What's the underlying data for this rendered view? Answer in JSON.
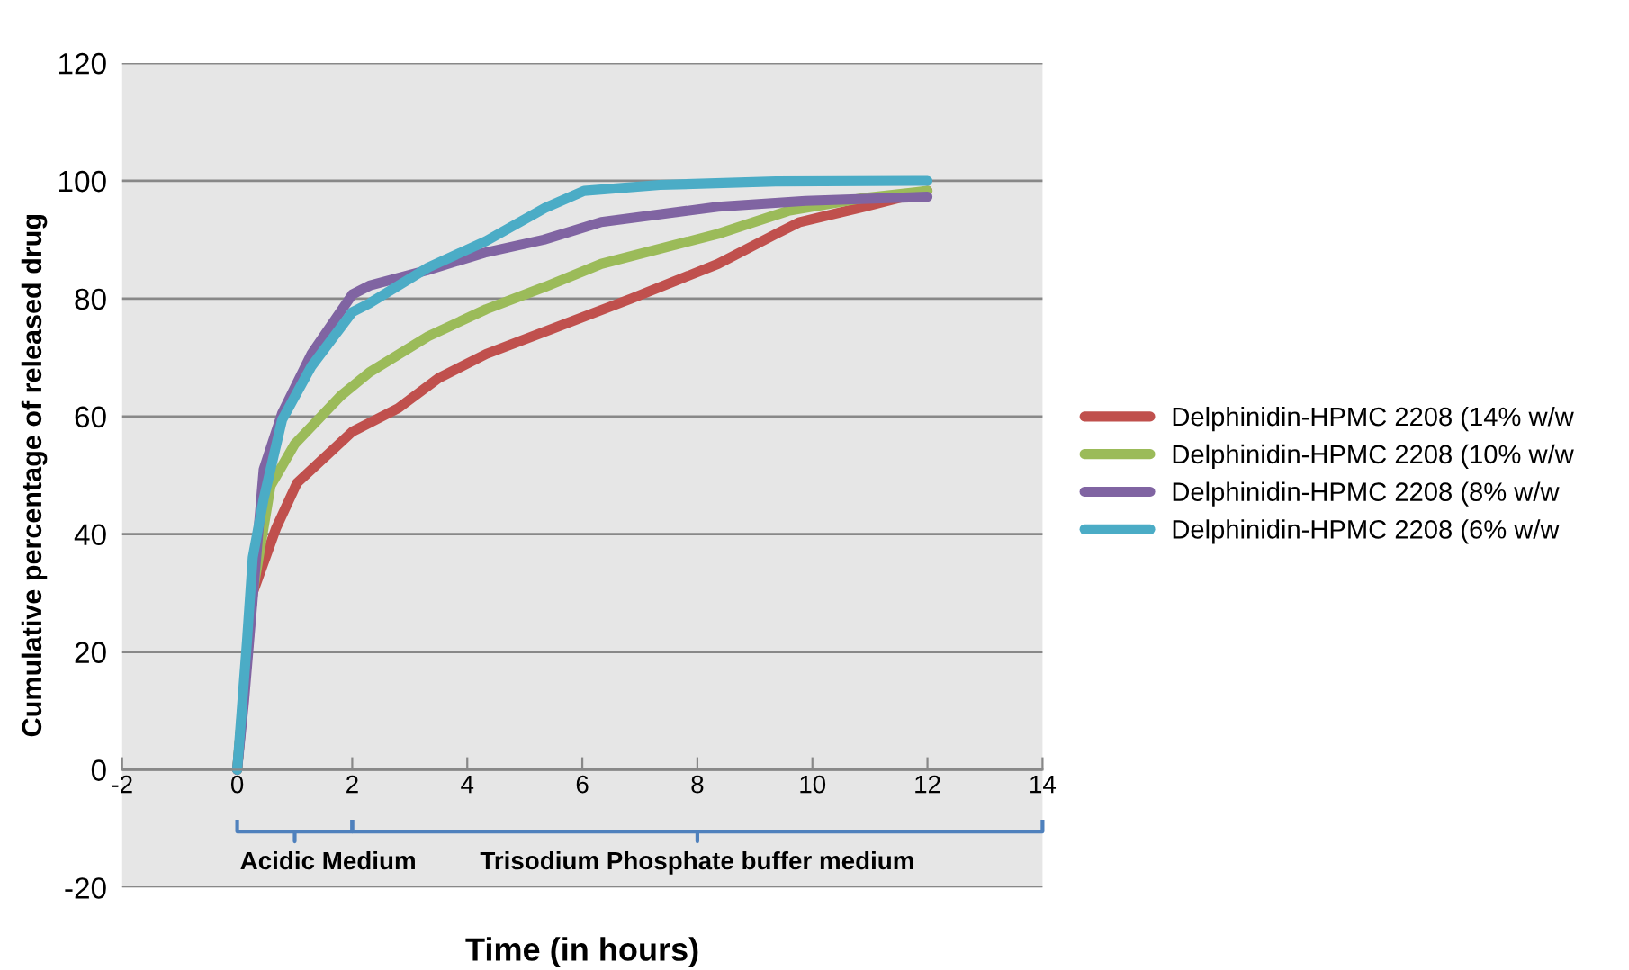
{
  "chart_data": {
    "type": "line",
    "xlabel": "Time (in hours)",
    "ylabel": "Cumulative percentage of released drug",
    "xlim": [
      -2,
      14
    ],
    "xticks": [
      -2,
      0,
      2,
      4,
      6,
      8,
      10,
      12,
      14
    ],
    "ylim": [
      -20,
      120
    ],
    "yticks": [
      -20,
      0,
      20,
      40,
      60,
      80,
      100,
      120
    ],
    "grid": "y",
    "legend": "right",
    "marker": "none",
    "line_style": "solid",
    "annotations": [
      "Acidic Medium",
      "Trisodium Phosphate buffer medium"
    ],
    "series": [
      {
        "name": "Delphinidin-HPMC 2208 (14% w/w",
        "color": "#c0504d",
        "x": [
          0,
          0.27,
          0.68,
          1.04,
          2.0,
          2.8,
          3.5,
          4.33,
          5.35,
          6.85,
          8.36,
          9.37,
          9.78,
          10.9,
          12
        ],
        "values": [
          0,
          30,
          41.1,
          48.7,
          57.4,
          61.4,
          66.5,
          70.6,
          74.4,
          80,
          85.9,
          91,
          93,
          95.6,
          98.3
        ]
      },
      {
        "name": "Delphinidin-HPMC 2208 (10% w/w",
        "color": "#9bbb59",
        "x": [
          0,
          0.27,
          0.58,
          1.0,
          1.8,
          2.3,
          3.32,
          4.33,
          5.35,
          6.33,
          8.36,
          9.58,
          10.9,
          12
        ],
        "values": [
          0,
          30,
          48.2,
          55.3,
          63.5,
          67.5,
          73.6,
          78.2,
          82,
          85.9,
          91,
          94.9,
          97.1,
          98.3
        ]
      },
      {
        "name": "Delphinidin-HPMC 2208 (8% w/w",
        "color": "#8064a2",
        "x": [
          0,
          0.12,
          0.46,
          0.78,
          1.29,
          2.0,
          2.3,
          3.3,
          4.3,
          5.33,
          6.33,
          8.36,
          9.88,
          12
        ],
        "values": [
          0,
          11.7,
          51,
          60.5,
          70.6,
          80.7,
          82.2,
          84.8,
          87.8,
          90,
          93,
          95.6,
          96.6,
          97.3
        ]
      },
      {
        "name": "Delphinidin-HPMC 2208 (6% w/w",
        "color": "#4bacc6",
        "x": [
          0,
          0.17,
          0.27,
          0.46,
          0.78,
          1.29,
          2.0,
          2.3,
          3.32,
          4.33,
          5.35,
          6.03,
          7.35,
          9.36,
          12
        ],
        "values": [
          0,
          21.8,
          36,
          46,
          59.4,
          68.5,
          77.7,
          79.2,
          85.3,
          89.8,
          95.4,
          98.3,
          99.3,
          99.9,
          100
        ]
      }
    ]
  }
}
